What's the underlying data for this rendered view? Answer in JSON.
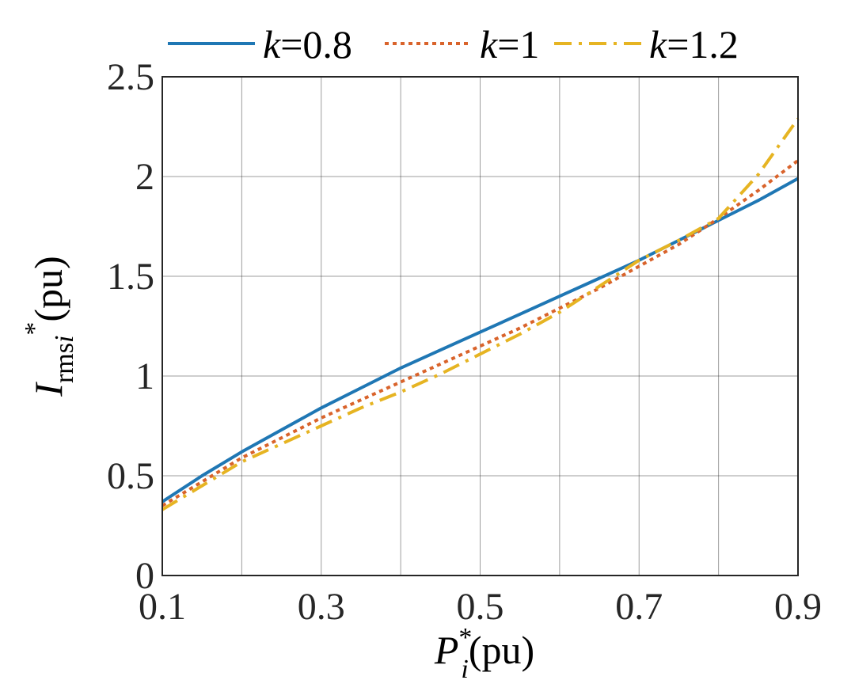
{
  "chart_data": {
    "type": "line",
    "xlim": [
      0.1,
      0.9
    ],
    "ylim": [
      0,
      2.5
    ],
    "grid": true,
    "legend_position": "top",
    "x_ticks": [
      0.1,
      0.3,
      0.5,
      0.7,
      0.9
    ],
    "x_tick_labels": [
      "0.1",
      "0.3",
      "0.5",
      "0.7",
      "0.9"
    ],
    "x_grid": [
      0.1,
      0.2,
      0.3,
      0.4,
      0.5,
      0.6,
      0.7,
      0.8,
      0.9
    ],
    "y_ticks": [
      0,
      0.5,
      1,
      1.5,
      2,
      2.5
    ],
    "y_tick_labels": [
      "0",
      "0.5",
      "1",
      "1.5",
      "2",
      "2.5"
    ],
    "xlabel": {
      "main": "P",
      "sup": "*",
      "sub": "i",
      "unit": "(pu)"
    },
    "ylabel": {
      "main": "I",
      "sub": "rms",
      "sub_italic": "i",
      "sup": "*",
      "unit": "(pu)"
    },
    "series": [
      {
        "label_var": "k",
        "label_value": "=0.8",
        "color": "#1f77b4",
        "dash": "solid",
        "x": [
          0.1,
          0.15,
          0.2,
          0.25,
          0.3,
          0.35,
          0.4,
          0.45,
          0.5,
          0.55,
          0.6,
          0.65,
          0.7,
          0.75,
          0.8,
          0.85,
          0.9
        ],
        "y": [
          0.37,
          0.5,
          0.62,
          0.73,
          0.84,
          0.94,
          1.04,
          1.13,
          1.22,
          1.31,
          1.4,
          1.49,
          1.58,
          1.68,
          1.78,
          1.88,
          1.99
        ]
      },
      {
        "label_var": "k",
        "label_value": "=1",
        "color": "#d9632b",
        "dash": "dot",
        "x": [
          0.1,
          0.15,
          0.2,
          0.25,
          0.3,
          0.35,
          0.4,
          0.45,
          0.5,
          0.55,
          0.6,
          0.65,
          0.7,
          0.75,
          0.8,
          0.85,
          0.9
        ],
        "y": [
          0.35,
          0.47,
          0.59,
          0.69,
          0.79,
          0.88,
          0.97,
          1.06,
          1.15,
          1.24,
          1.34,
          1.44,
          1.55,
          1.66,
          1.79,
          1.93,
          2.08
        ]
      },
      {
        "label_var": "k",
        "label_value": "=1.2",
        "color": "#e6b422",
        "dash": "dashdot",
        "x": [
          0.1,
          0.15,
          0.2,
          0.25,
          0.3,
          0.35,
          0.4,
          0.45,
          0.5,
          0.55,
          0.6,
          0.65,
          0.7,
          0.75,
          0.8,
          0.85,
          0.9
        ],
        "y": [
          0.33,
          0.45,
          0.57,
          0.66,
          0.75,
          0.84,
          0.92,
          1.01,
          1.11,
          1.21,
          1.32,
          1.45,
          1.58,
          1.68,
          1.79,
          2.01,
          2.29
        ]
      }
    ]
  }
}
